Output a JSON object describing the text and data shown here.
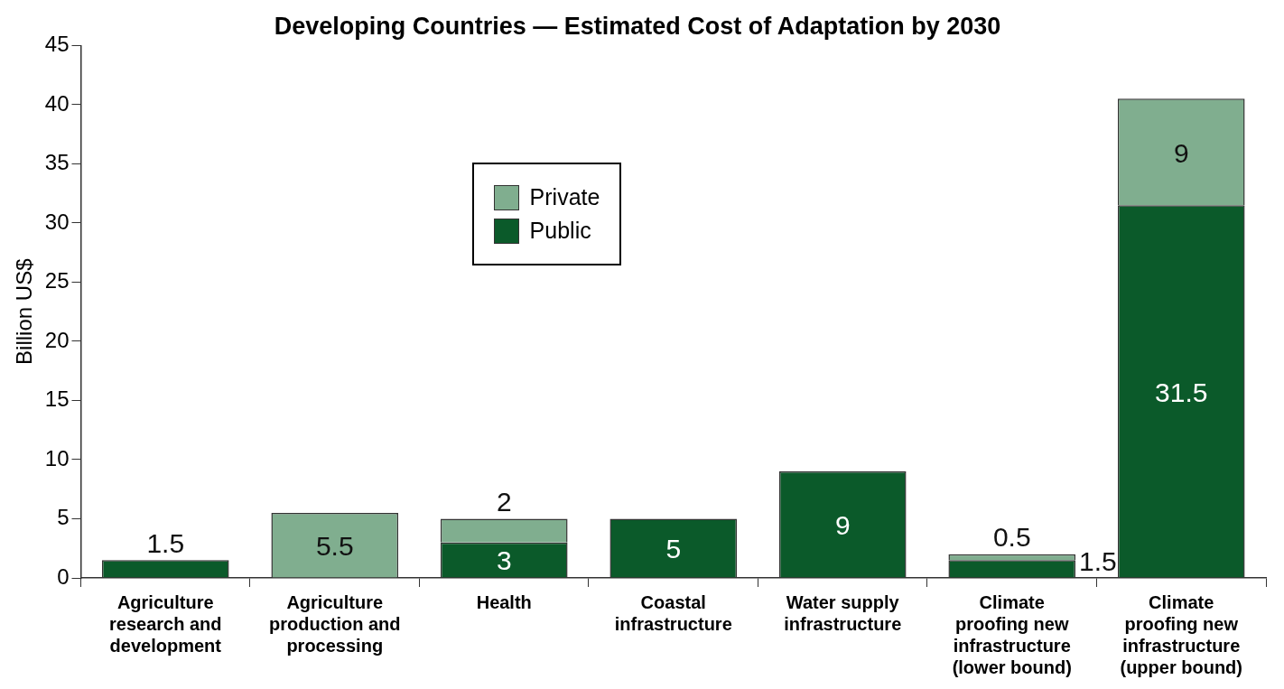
{
  "chart_data": {
    "type": "bar",
    "title": "Developing Countries — Estimated Cost of Adaptation by 2030",
    "ylabel": "Billion US$",
    "categories": [
      "Agriculture research and development",
      "Agriculture production and processing",
      "Health",
      "Coastal infrastructure",
      "Water supply infrastructure",
      "Climate proofing new infrastructure (lower bound)",
      "Climate proofing new infrastructure (upper bound)"
    ],
    "series": [
      {
        "name": "Public",
        "color": "#0b5a2a",
        "values": [
          1.5,
          null,
          3,
          5,
          9,
          1.5,
          31.5
        ]
      },
      {
        "name": "Private",
        "color": "#80ae8f",
        "values": [
          null,
          5.5,
          2,
          null,
          null,
          0.5,
          9
        ]
      }
    ],
    "stacked": true,
    "ylim": [
      0,
      45
    ],
    "yticks": [
      0,
      5,
      10,
      15,
      20,
      25,
      30,
      35,
      40,
      45
    ],
    "grid": false,
    "legend": "top",
    "data_labels": true
  }
}
